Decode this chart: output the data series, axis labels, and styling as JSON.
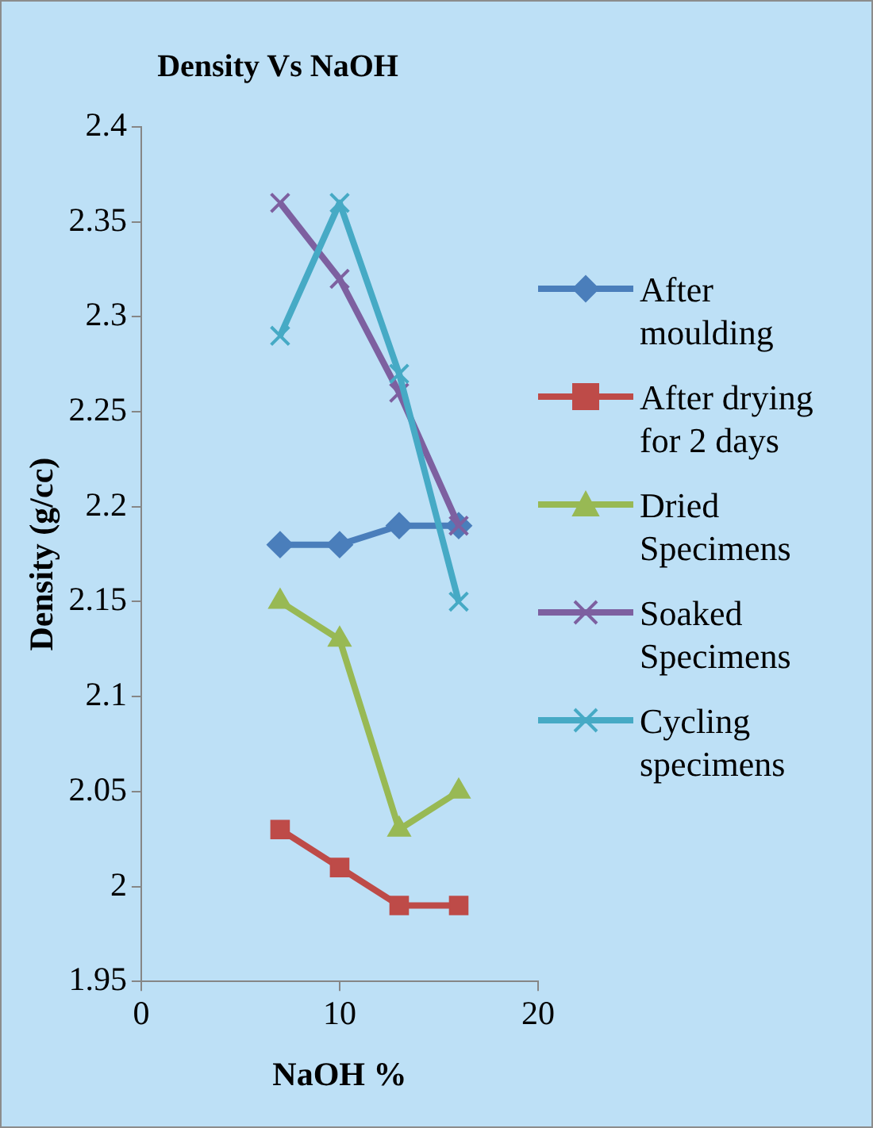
{
  "chart_data": {
    "type": "line",
    "title": "Density Vs NaOH",
    "xlabel": "NaOH %",
    "ylabel": "Density (g/cc)",
    "x": [
      7,
      10,
      13,
      16
    ],
    "xlim": [
      0,
      20
    ],
    "xticks": [
      0,
      10,
      20
    ],
    "ylim": [
      1.95,
      2.4
    ],
    "yticks": [
      1.95,
      2,
      2.05,
      2.1,
      2.15,
      2.2,
      2.25,
      2.3,
      2.35,
      2.4
    ],
    "grid": false,
    "legend": "right",
    "series": [
      {
        "name": "After moulding",
        "color": "#4a7ebb",
        "marker": "diamond",
        "values": [
          2.18,
          2.18,
          2.19,
          2.19
        ]
      },
      {
        "name": "After drying for 2 days",
        "color": "#be4b48",
        "marker": "square",
        "values": [
          2.03,
          2.01,
          1.99,
          1.99
        ]
      },
      {
        "name": "Dried Specimens",
        "color": "#98b954",
        "marker": "triangle",
        "values": [
          2.15,
          2.13,
          2.03,
          2.05
        ]
      },
      {
        "name": "Soaked Specimens",
        "color": "#7d60a0",
        "marker": "cross",
        "values": [
          2.36,
          2.32,
          2.26,
          2.19
        ]
      },
      {
        "name": "Cycling specimens",
        "color": "#46aac5",
        "marker": "cross",
        "values": [
          2.29,
          2.36,
          2.27,
          2.15
        ]
      }
    ]
  }
}
